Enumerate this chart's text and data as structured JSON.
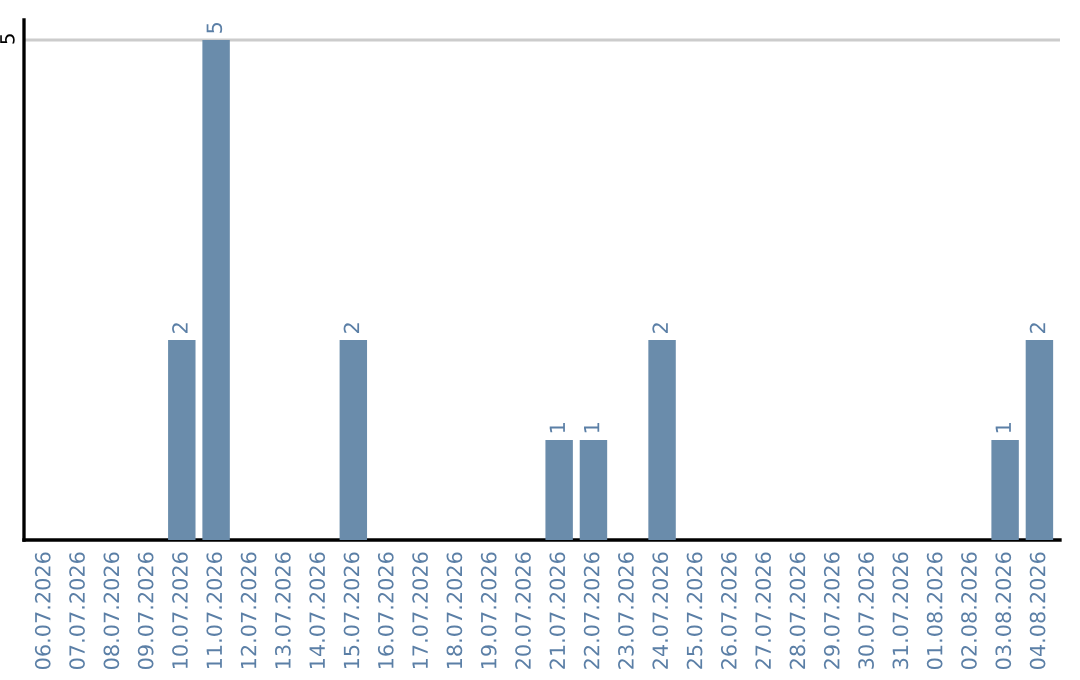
{
  "chart_data": {
    "type": "bar",
    "categories": [
      "06.07.2026",
      "07.07.2026",
      "08.07.2026",
      "09.07.2026",
      "10.07.2026",
      "11.07.2026",
      "12.07.2026",
      "13.07.2026",
      "14.07.2026",
      "15.07.2026",
      "16.07.2026",
      "17.07.2026",
      "18.07.2026",
      "19.07.2026",
      "20.07.2026",
      "21.07.2026",
      "22.07.2026",
      "23.07.2026",
      "24.07.2026",
      "25.07.2026",
      "26.07.2026",
      "27.07.2026",
      "28.07.2026",
      "29.07.2026",
      "30.07.2026",
      "31.07.2026",
      "01.08.2026",
      "02.08.2026",
      "03.08.2026",
      "04.08.2026"
    ],
    "values": [
      0,
      0,
      0,
      0,
      2,
      5,
      0,
      0,
      0,
      2,
      0,
      0,
      0,
      0,
      0,
      1,
      1,
      0,
      2,
      0,
      0,
      0,
      0,
      0,
      0,
      0,
      0,
      0,
      1,
      2
    ],
    "value_labels": [
      null,
      null,
      null,
      null,
      "2",
      "5",
      null,
      null,
      null,
      "2",
      null,
      null,
      null,
      null,
      null,
      "1",
      "1",
      null,
      "2",
      null,
      null,
      null,
      null,
      null,
      null,
      null,
      null,
      null,
      "1",
      "2"
    ],
    "color": "#6a8cab",
    "ylim": [
      0,
      5.2
    ],
    "yticks": [
      5
    ],
    "grid": "y"
  }
}
